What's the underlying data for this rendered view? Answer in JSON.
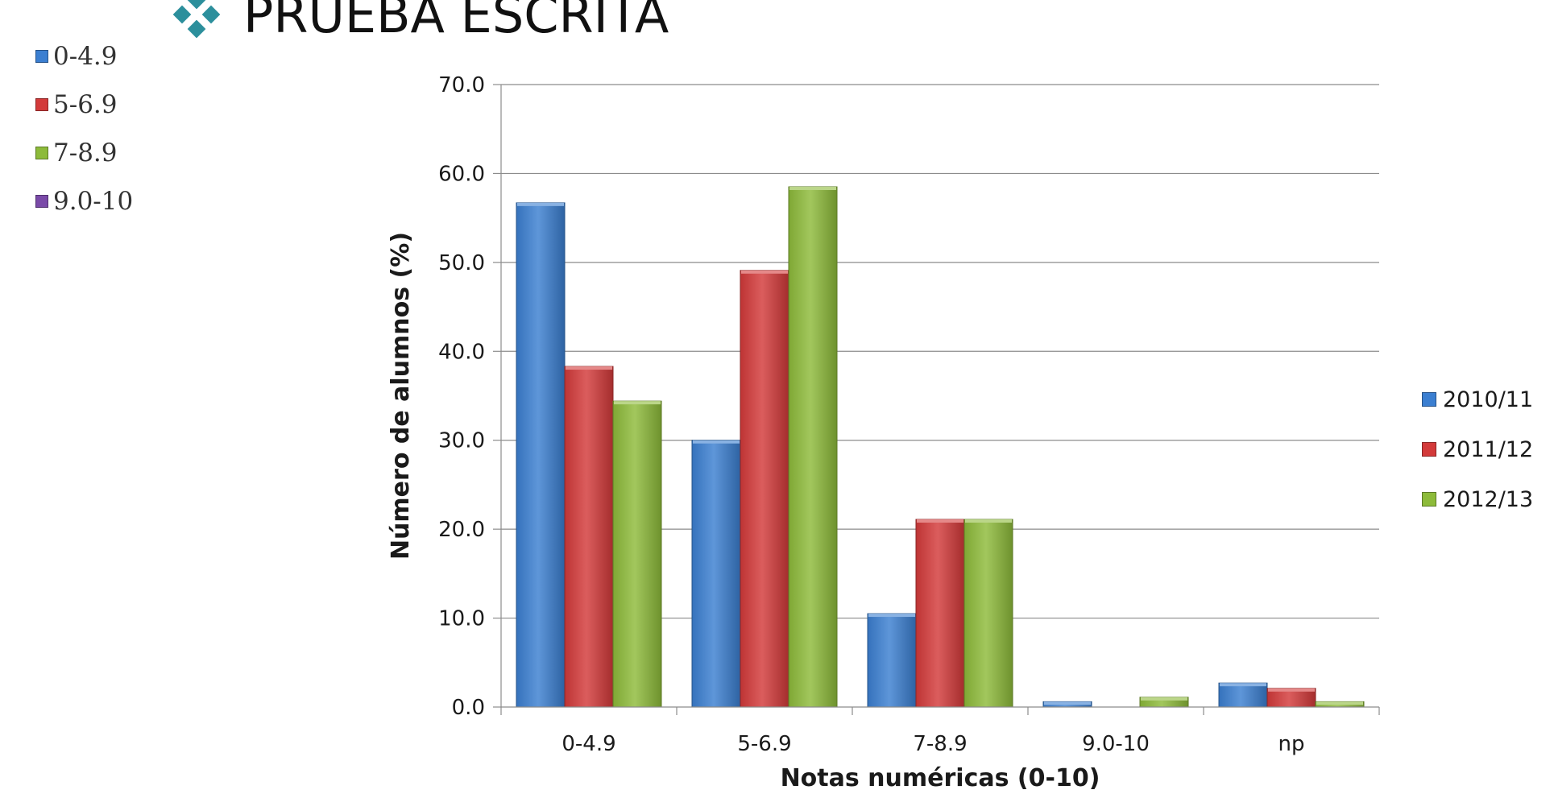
{
  "title": "PRUEBA ESCRITA",
  "title_icon": "diamond-bullet-icon",
  "side_legend": [
    {
      "label": "0-4.9",
      "color": "#3b7fd1"
    },
    {
      "label": "5-6.9",
      "color": "#d33a3a"
    },
    {
      "label": "7-8.9",
      "color": "#8dbb3a"
    },
    {
      "label": "9.0-10",
      "color": "#7a4aa8"
    }
  ],
  "chart_data": {
    "type": "bar",
    "categories": [
      "0-4.9",
      "5-6.9",
      "7-8.9",
      "9.0-10",
      "np"
    ],
    "series": [
      {
        "name": "2010/11",
        "color": "#3b7fd1",
        "values": [
          56.7,
          30.0,
          10.5,
          0.6,
          2.7
        ]
      },
      {
        "name": "2011/12",
        "color": "#d33a3a",
        "values": [
          38.3,
          49.1,
          21.1,
          0.0,
          2.1
        ]
      },
      {
        "name": "2012/13",
        "color": "#8dbb3a",
        "values": [
          34.4,
          58.5,
          21.1,
          1.1,
          0.6
        ]
      }
    ],
    "xlabel": "Notas numéricas (0-10)",
    "ylabel": "Número de alumnos (%)",
    "ylim": [
      0,
      70
    ],
    "yticks": [
      "0.0",
      "10.0",
      "20.0",
      "30.0",
      "40.0",
      "50.0",
      "60.0",
      "70.0"
    ],
    "grid": true,
    "legend_position": "right"
  }
}
